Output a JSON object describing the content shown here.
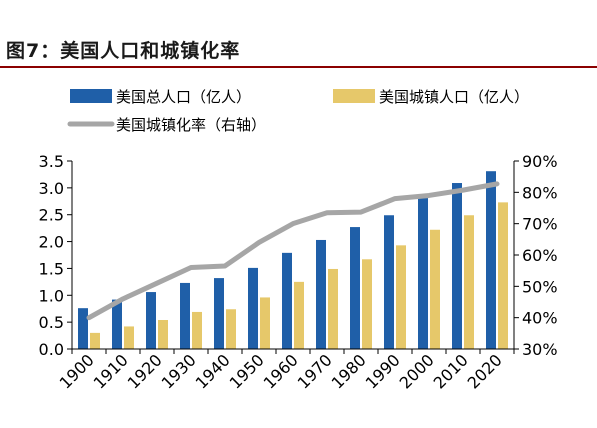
{
  "figure": {
    "title": "图7：美国人口和城镇化率"
  },
  "chart_data": {
    "type": "bar",
    "categories": [
      "1900",
      "1910",
      "1920",
      "1930",
      "1940",
      "1950",
      "1960",
      "1970",
      "1980",
      "1990",
      "2000",
      "2010",
      "2020"
    ],
    "series": [
      {
        "name": "美国总人口（亿人）",
        "type": "bar",
        "axis": "left",
        "values": [
          0.76,
          0.92,
          1.06,
          1.23,
          1.32,
          1.51,
          1.79,
          2.03,
          2.27,
          2.49,
          2.81,
          3.09,
          3.31
        ]
      },
      {
        "name": "美国城镇人口（亿人）",
        "type": "bar",
        "axis": "left",
        "values": [
          0.3,
          0.42,
          0.54,
          0.69,
          0.74,
          0.96,
          1.25,
          1.49,
          1.67,
          1.93,
          2.22,
          2.49,
          2.73
        ]
      },
      {
        "name": "美国城镇化率（右轴）",
        "type": "line",
        "axis": "right",
        "values": [
          0.4,
          0.46,
          0.51,
          0.56,
          0.565,
          0.64,
          0.7,
          0.735,
          0.737,
          0.78,
          0.79,
          0.807,
          0.827
        ]
      }
    ],
    "ylim": [
      0,
      3.5
    ],
    "yticks": [
      "0.0",
      "0.5",
      "1.0",
      "1.5",
      "2.0",
      "2.5",
      "3.0",
      "3.5"
    ],
    "y2lim": [
      0.3,
      0.9
    ],
    "y2ticks": [
      "30%",
      "40%",
      "50%",
      "60%",
      "70%",
      "80%",
      "90%"
    ],
    "colors": {
      "total": "#1f5fa8",
      "urban": "#e6c86a",
      "rate": "#a6a6a6"
    },
    "legend_position": "top",
    "grid": false
  }
}
